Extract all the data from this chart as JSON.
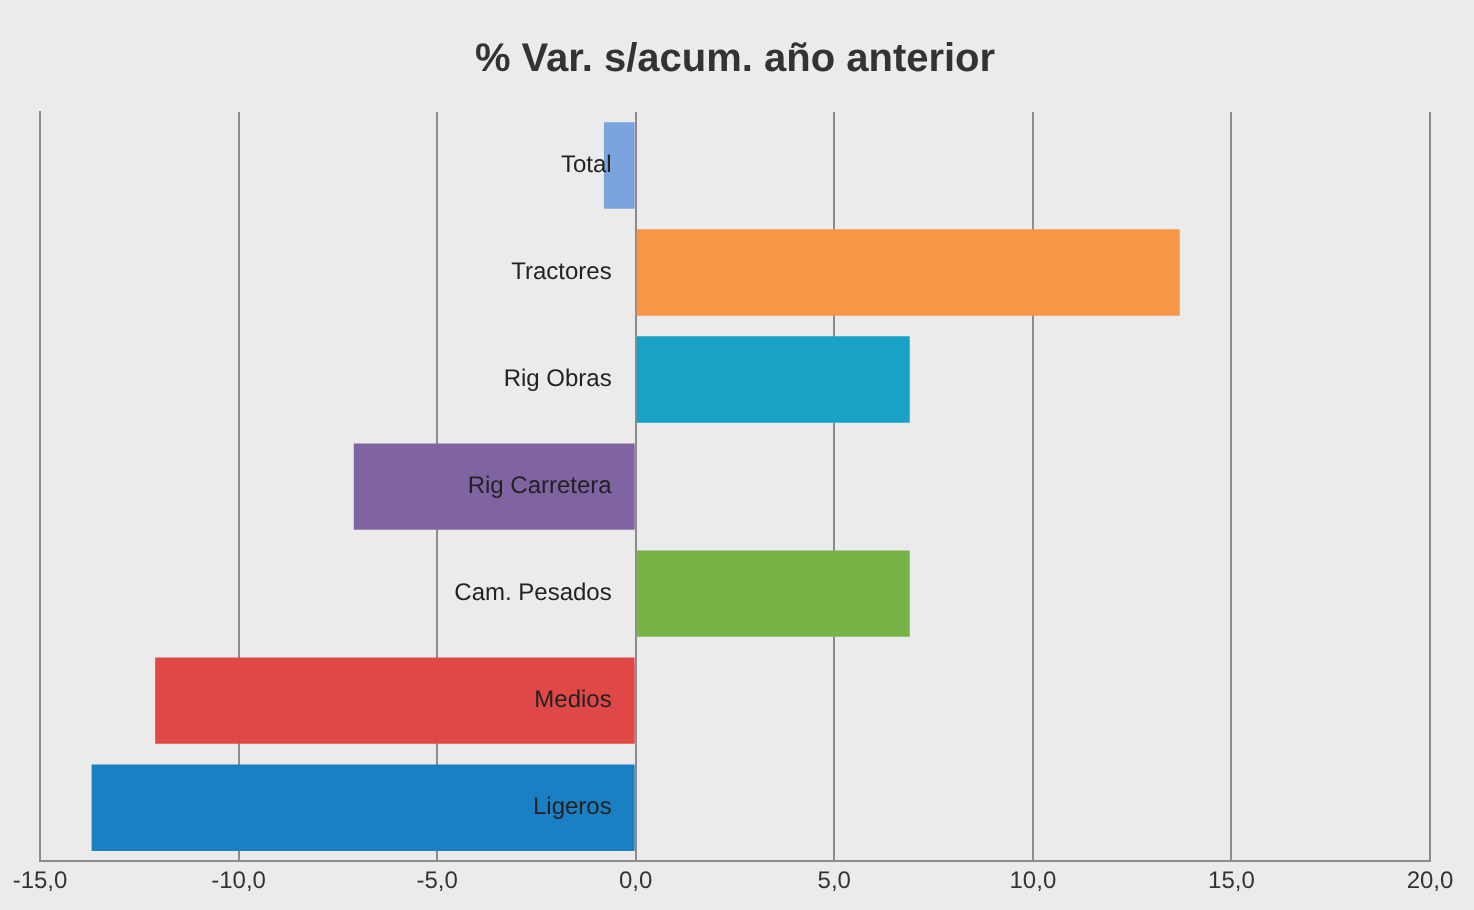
{
  "chart_data": {
    "type": "bar",
    "orientation": "horizontal",
    "title": "% Var. s/acum. año anterior",
    "categories": [
      "Total",
      "Tractores",
      "Rig Obras",
      "Rig Carretera",
      "Cam. Pesados",
      "Medios",
      "Ligeros"
    ],
    "values": [
      -0.8,
      13.7,
      6.9,
      -7.1,
      6.9,
      -12.1,
      -13.7
    ],
    "colors": [
      "#7ba3dc",
      "#f79646",
      "#17a2c6",
      "#8064a2",
      "#77b347",
      "#e04848",
      "#1b7fc4"
    ],
    "xlim": [
      -15,
      20
    ],
    "xticks": [
      {
        "value": -15,
        "label": "-15,0"
      },
      {
        "value": -10,
        "label": "-10,0"
      },
      {
        "value": -5,
        "label": "-5,0"
      },
      {
        "value": 0,
        "label": "0,0"
      },
      {
        "value": 5,
        "label": "5,0"
      },
      {
        "value": 10,
        "label": "10,0"
      },
      {
        "value": 15,
        "label": "15,0"
      },
      {
        "value": 20,
        "label": "20,0"
      }
    ],
    "grid": "x",
    "legend": false
  }
}
